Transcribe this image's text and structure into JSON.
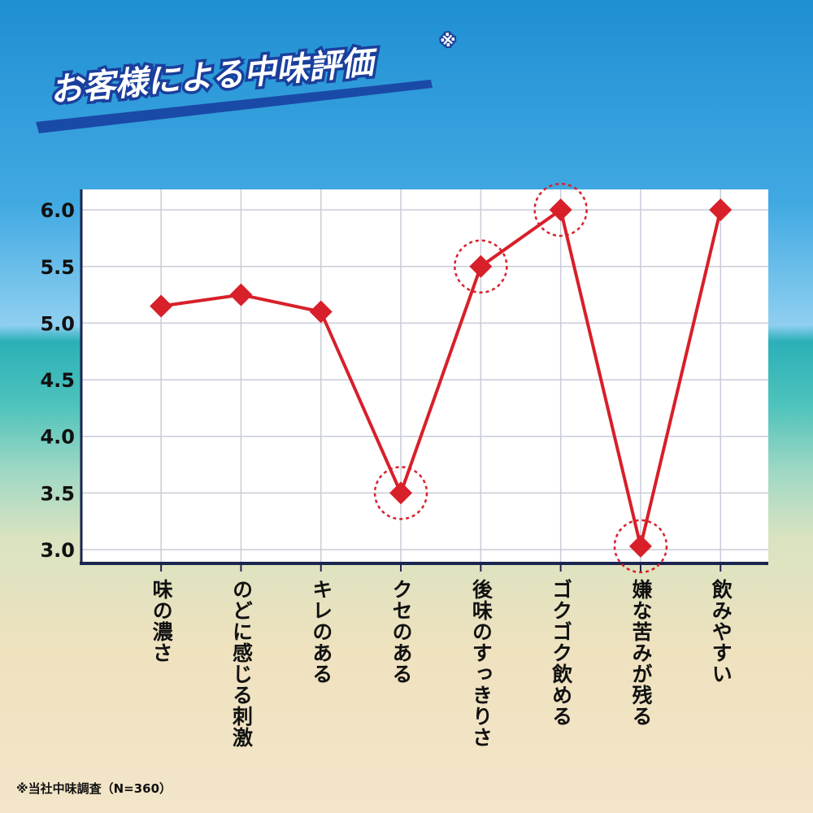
{
  "chart_data": {
    "type": "line",
    "title": "お客様による中味評価",
    "title_mark": "※",
    "footnote": "※当社中味調査（N=360）",
    "categories": [
      "味の濃さ",
      "のどに感じる刺激",
      "キレのある",
      "クセのある",
      "後味のすっきりさ",
      "ゴクゴク飲める",
      "嫌な苦みが残る",
      "飲みやすい"
    ],
    "series": [
      {
        "name": "中味評価",
        "color": "#d7202a",
        "values": [
          5.15,
          5.25,
          5.1,
          3.5,
          5.5,
          6.0,
          3.03,
          6.0
        ]
      }
    ],
    "highlighted": [
      3,
      4,
      5,
      6
    ],
    "ylim": [
      2.9,
      6.13
    ],
    "yticks": [
      {
        "value": 3,
        "label": "3.0"
      },
      {
        "value": 3.5,
        "label": "3.5"
      },
      {
        "value": 4,
        "label": "4.0"
      },
      {
        "value": 4.5,
        "label": "4.5"
      },
      {
        "value": 5,
        "label": "5.0"
      },
      {
        "value": 5.5,
        "label": "5.5"
      },
      {
        "value": 6,
        "label": "6.0"
      }
    ],
    "grid": true
  }
}
